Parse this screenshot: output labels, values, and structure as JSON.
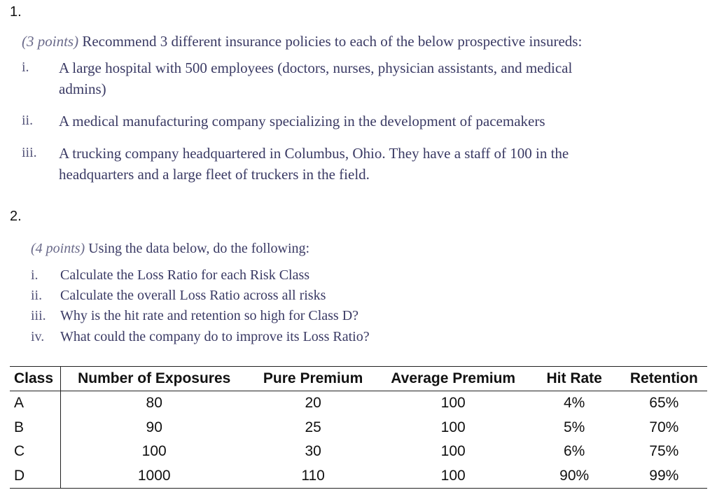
{
  "q1": {
    "number": "1.",
    "points": "(3 points)",
    "prompt": "Recommend 3 different insurance policies to each of the below prospective insureds:",
    "items": [
      {
        "numeral": "i.",
        "line1": "A large hospital with 500 employees (doctors, nurses, physician assistants, and medical",
        "line2": "admins)"
      },
      {
        "numeral": "ii.",
        "line1": "A medical manufacturing company specializing in the development of pacemakers",
        "line2": ""
      },
      {
        "numeral": "iii.",
        "line1": "A trucking company headquartered in Columbus, Ohio.  They have a staff of 100 in the",
        "line2": "headquarters and a large fleet of truckers in the field."
      }
    ]
  },
  "q2": {
    "number": "2.",
    "points": "(4 points)",
    "prompt": "Using the data below, do the following:",
    "items": [
      {
        "numeral": "i.",
        "text": "Calculate the Loss Ratio for each Risk Class"
      },
      {
        "numeral": "ii.",
        "text": "Calculate the overall Loss Ratio across all risks"
      },
      {
        "numeral": "iii.",
        "text": "Why is the hit rate and retention so high for Class D?"
      },
      {
        "numeral": "iv.",
        "text": "What could the company do to improve its Loss Ratio?"
      }
    ]
  },
  "table": {
    "headers": [
      "Class",
      "Number of Exposures",
      "Pure Premium",
      "Average Premium",
      "Hit Rate",
      "Retention"
    ],
    "rows": [
      [
        "A",
        "80",
        "20",
        "100",
        "4%",
        "65%"
      ],
      [
        "B",
        "90",
        "25",
        "100",
        "5%",
        "70%"
      ],
      [
        "C",
        "100",
        "30",
        "100",
        "6%",
        "75%"
      ],
      [
        "D",
        "1000",
        "110",
        "100",
        "90%",
        "99%"
      ]
    ]
  }
}
